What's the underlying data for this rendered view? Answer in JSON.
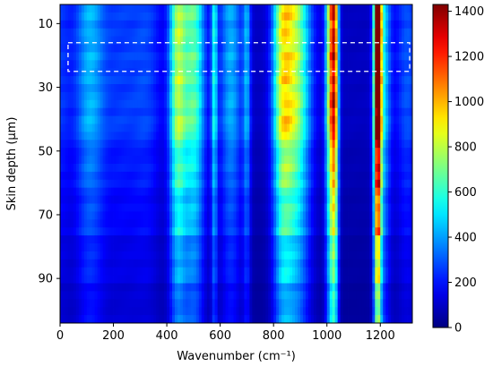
{
  "chart_data": {
    "type": "heatmap",
    "title": "",
    "xlabel": "Wavenumber (cm⁻¹)",
    "ylabel": "Skin depth (μm)",
    "xlim": [
      0,
      1320
    ],
    "ylim": [
      4,
      104
    ],
    "y_inverted": true,
    "x_ticks": [
      0,
      200,
      400,
      600,
      800,
      1000,
      1200
    ],
    "x_tick_labels": [
      "0",
      "200",
      "400",
      "600",
      "800",
      "1000",
      "1200"
    ],
    "y_ticks": [
      10,
      30,
      50,
      70,
      90
    ],
    "y_tick_labels": [
      "10",
      "30",
      "50",
      "70",
      "90"
    ],
    "colorbar": {
      "range": [
        0,
        1430
      ],
      "ticks": [
        0,
        200,
        400,
        600,
        800,
        1000,
        1200,
        1400
      ],
      "tick_labels": [
        "0",
        "200",
        "400",
        "600",
        "800",
        "1000",
        "1200",
        "1400"
      ],
      "colormap": "jet"
    },
    "depths": [
      5,
      7.5,
      10,
      12.5,
      15,
      17.5,
      20,
      22.5,
      25,
      27.5,
      30,
      32.5,
      35,
      37.5,
      40,
      42.5,
      45,
      47.5,
      50,
      52.5,
      55,
      57.5,
      60,
      62.5,
      65,
      67.5,
      70,
      72.5,
      75,
      77.5,
      80,
      82.5,
      85,
      87.5,
      90,
      92.5,
      95,
      97.5,
      100,
      102.5
    ],
    "bands": [
      {
        "center": 0,
        "width": 30,
        "peak": 150
      },
      {
        "center": 110,
        "width": 40,
        "peak": 320
      },
      {
        "center": 230,
        "width": 60,
        "peak": 160
      },
      {
        "center": 330,
        "width": 40,
        "peak": 140
      },
      {
        "center": 440,
        "width": 22,
        "peak": 620
      },
      {
        "center": 500,
        "width": 30,
        "peak": 560
      },
      {
        "center": 578,
        "width": 8,
        "peak": 420
      },
      {
        "center": 640,
        "width": 30,
        "peak": 330
      },
      {
        "center": 700,
        "width": 10,
        "peak": 300
      },
      {
        "center": 830,
        "width": 25,
        "peak": 480
      },
      {
        "center": 880,
        "width": 40,
        "peak": 680
      },
      {
        "center": 1015,
        "width": 14,
        "peak": 800
      },
      {
        "center": 1030,
        "width": 10,
        "peak": 700
      },
      {
        "center": 1190,
        "width": 10,
        "peak": 1400
      },
      {
        "center": 1210,
        "width": 20,
        "peak": 400
      },
      {
        "center": 1300,
        "width": 30,
        "peak": 200
      }
    ],
    "background_level": 90,
    "highlight_region": {
      "x": [
        30,
        1310
      ],
      "y": [
        16,
        25
      ],
      "style": "dashed-white"
    }
  }
}
